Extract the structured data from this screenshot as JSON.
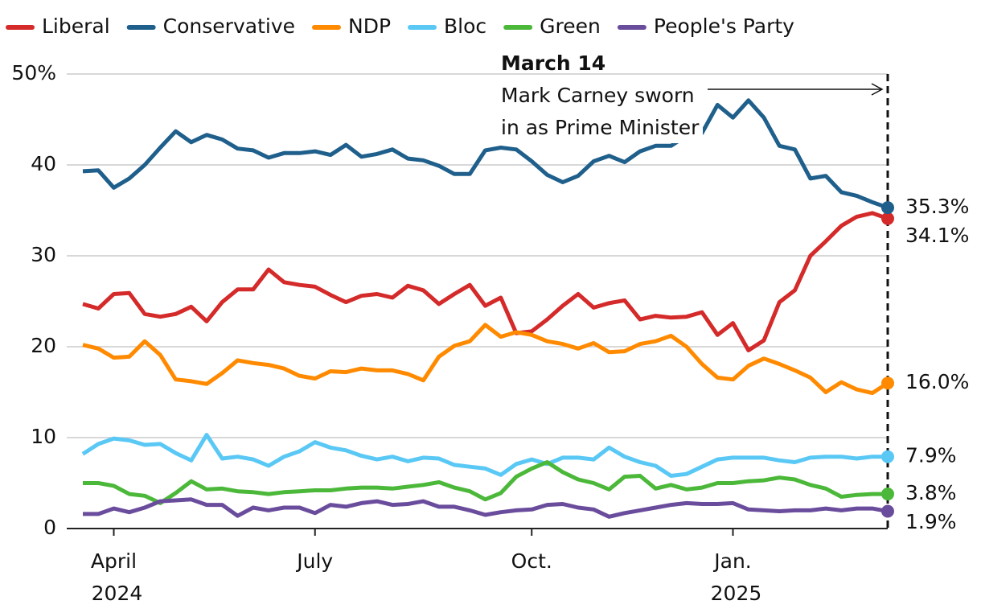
{
  "chart_data": {
    "type": "line",
    "categories": [
      null,
      null,
      "April 2024",
      null,
      null,
      null,
      null,
      null,
      null,
      null,
      null,
      null,
      null,
      null,
      null,
      "July",
      null,
      null,
      null,
      null,
      null,
      null,
      null,
      null,
      null,
      null,
      null,
      null,
      null,
      "Oct.",
      null,
      null,
      null,
      null,
      null,
      null,
      null,
      null,
      null,
      null,
      null,
      null,
      "Jan. 2025",
      null,
      null,
      null,
      null,
      null,
      null,
      null,
      null,
      null,
      null
    ],
    "ylim": [
      0,
      50
    ],
    "yticks": [
      0,
      10,
      20,
      30,
      40,
      {
        "value": 50,
        "label": "50%"
      }
    ],
    "grid": true,
    "annotation": {
      "title": "March 14",
      "text": [
        "Mark Carney sworn",
        "in as Prime Minister"
      ]
    },
    "series": [
      {
        "name": "Liberal",
        "color": "#d42a2a",
        "label_color": "#d42a2a",
        "values": [
          24.7,
          24.2,
          25.8,
          25.9,
          23.6,
          23.3,
          23.6,
          24.4,
          22.8,
          24.9,
          26.3,
          26.3,
          28.5,
          27.1,
          26.8,
          26.6,
          25.7,
          24.9,
          25.6,
          25.8,
          25.4,
          26.7,
          26.2,
          24.7,
          25.8,
          26.8,
          24.5,
          25.4,
          21.5,
          21.7,
          23.0,
          24.5,
          25.8,
          24.3,
          24.8,
          25.1,
          23.0,
          23.4,
          23.2,
          23.3,
          23.8,
          21.3,
          22.6,
          19.6,
          20.7,
          24.9,
          26.2,
          30.0,
          31.6,
          33.3,
          34.3,
          34.7,
          34.1
        ],
        "value_labels": [
          null,
          null,
          null,
          null,
          null,
          null,
          null,
          null,
          null,
          null,
          null,
          null,
          null,
          null,
          null,
          null,
          null,
          null,
          null,
          null,
          null,
          null,
          null,
          null,
          null,
          null,
          null,
          null,
          null,
          null,
          null,
          null,
          null,
          null,
          null,
          null,
          null,
          null,
          null,
          null,
          null,
          null,
          null,
          null,
          null,
          null,
          null,
          null,
          null,
          null,
          null,
          null,
          "34.1%"
        ]
      },
      {
        "name": "Conservative",
        "color": "#1f5f8b",
        "label_color": "#1f5f8b",
        "values": [
          39.3,
          39.4,
          37.5,
          38.5,
          40.0,
          41.9,
          43.7,
          42.5,
          43.3,
          42.8,
          41.8,
          41.6,
          40.8,
          41.3,
          41.3,
          41.5,
          41.1,
          42.2,
          40.9,
          41.2,
          41.7,
          40.7,
          40.5,
          39.9,
          39.0,
          39.0,
          41.6,
          41.9,
          41.7,
          40.4,
          38.9,
          38.1,
          38.8,
          40.4,
          41.0,
          40.3,
          41.5,
          42.1,
          42.1,
          43.2,
          43.5,
          46.6,
          45.2,
          47.1,
          45.2,
          42.1,
          41.7,
          38.5,
          38.8,
          37.0,
          36.6,
          35.9,
          35.3
        ],
        "value_labels": [
          null,
          null,
          null,
          null,
          null,
          null,
          null,
          null,
          null,
          null,
          null,
          null,
          null,
          null,
          null,
          null,
          null,
          null,
          null,
          null,
          null,
          null,
          null,
          null,
          null,
          null,
          null,
          null,
          null,
          null,
          null,
          null,
          null,
          null,
          null,
          null,
          null,
          null,
          null,
          null,
          null,
          null,
          null,
          null,
          null,
          null,
          null,
          null,
          null,
          null,
          null,
          null,
          "35.3%"
        ]
      },
      {
        "name": "NDP",
        "color": "#ff8a00",
        "label_color": "#d35a00",
        "values": [
          20.2,
          19.8,
          18.8,
          18.9,
          20.6,
          19.1,
          16.4,
          16.2,
          15.9,
          17.1,
          18.5,
          18.2,
          18.0,
          17.6,
          16.8,
          16.5,
          17.3,
          17.2,
          17.6,
          17.4,
          17.4,
          17.0,
          16.3,
          18.9,
          20.1,
          20.6,
          22.4,
          21.1,
          21.6,
          21.3,
          20.6,
          20.3,
          19.8,
          20.4,
          19.4,
          19.5,
          20.3,
          20.6,
          21.2,
          20.0,
          18.1,
          16.6,
          16.4,
          17.9,
          18.7,
          18.1,
          17.4,
          16.6,
          15.0,
          16.1,
          15.3,
          14.9,
          16.0
        ],
        "value_labels": [
          null,
          null,
          null,
          null,
          null,
          null,
          null,
          null,
          null,
          null,
          null,
          null,
          null,
          null,
          null,
          null,
          null,
          null,
          null,
          null,
          null,
          null,
          null,
          null,
          null,
          null,
          null,
          null,
          null,
          null,
          null,
          null,
          null,
          null,
          null,
          null,
          null,
          null,
          null,
          null,
          null,
          null,
          null,
          null,
          null,
          null,
          null,
          null,
          null,
          null,
          null,
          null,
          "16.0%"
        ]
      },
      {
        "name": "Bloc",
        "color": "#5ac8f5",
        "label_color": "#2a93b8",
        "values": [
          8.2,
          9.3,
          9.9,
          9.7,
          9.2,
          9.3,
          8.3,
          7.5,
          10.3,
          7.7,
          7.9,
          7.6,
          6.9,
          7.9,
          8.5,
          9.5,
          8.9,
          8.6,
          8.0,
          7.6,
          7.9,
          7.4,
          7.8,
          7.7,
          7.0,
          6.8,
          6.6,
          5.9,
          7.1,
          7.6,
          7.1,
          7.8,
          7.8,
          7.6,
          8.9,
          7.9,
          7.3,
          6.9,
          5.8,
          6.0,
          6.8,
          7.6,
          7.8,
          7.8,
          7.8,
          7.5,
          7.3,
          7.8,
          7.9,
          7.9,
          7.7,
          7.9,
          7.9
        ],
        "value_labels": [
          null,
          null,
          null,
          null,
          null,
          null,
          null,
          null,
          null,
          null,
          null,
          null,
          null,
          null,
          null,
          null,
          null,
          null,
          null,
          null,
          null,
          null,
          null,
          null,
          null,
          null,
          null,
          null,
          null,
          null,
          null,
          null,
          null,
          null,
          null,
          null,
          null,
          null,
          null,
          null,
          null,
          null,
          null,
          null,
          null,
          null,
          null,
          null,
          null,
          null,
          null,
          null,
          "7.9%"
        ]
      },
      {
        "name": "Green",
        "color": "#4cb83a",
        "label_color": "#2a8a1f",
        "values": [
          5.0,
          5.0,
          4.7,
          3.8,
          3.6,
          2.8,
          3.9,
          5.2,
          4.3,
          4.4,
          4.1,
          4.0,
          3.8,
          4.0,
          4.1,
          4.2,
          4.2,
          4.4,
          4.5,
          4.5,
          4.4,
          4.6,
          4.8,
          5.1,
          4.5,
          4.1,
          3.2,
          3.9,
          5.7,
          6.6,
          7.3,
          6.2,
          5.4,
          5.0,
          4.3,
          5.7,
          5.8,
          4.4,
          4.8,
          4.3,
          4.5,
          5.0,
          5.0,
          5.2,
          5.3,
          5.6,
          5.4,
          4.8,
          4.4,
          3.5,
          3.7,
          3.8,
          3.8
        ],
        "value_labels": [
          null,
          null,
          null,
          null,
          null,
          null,
          null,
          null,
          null,
          null,
          null,
          null,
          null,
          null,
          null,
          null,
          null,
          null,
          null,
          null,
          null,
          null,
          null,
          null,
          null,
          null,
          null,
          null,
          null,
          null,
          null,
          null,
          null,
          null,
          null,
          null,
          null,
          null,
          null,
          null,
          null,
          null,
          null,
          null,
          null,
          null,
          null,
          null,
          null,
          null,
          null,
          null,
          "3.8%"
        ]
      },
      {
        "name": "People's Party",
        "color": "#6a4c9c",
        "label_color": "#6a4c9c",
        "values": [
          1.6,
          1.6,
          2.2,
          1.8,
          2.3,
          3.0,
          3.1,
          3.2,
          2.6,
          2.6,
          1.4,
          2.3,
          2.0,
          2.3,
          2.3,
          1.7,
          2.6,
          2.4,
          2.8,
          3.0,
          2.6,
          2.7,
          3.0,
          2.4,
          2.4,
          2.0,
          1.5,
          1.8,
          2.0,
          2.1,
          2.6,
          2.7,
          2.3,
          2.1,
          1.3,
          1.7,
          2.0,
          2.3,
          2.6,
          2.8,
          2.7,
          2.7,
          2.8,
          2.1,
          2.0,
          1.9,
          2.0,
          2.0,
          2.2,
          2.0,
          2.2,
          2.2,
          1.9
        ],
        "value_labels": [
          null,
          null,
          null,
          null,
          null,
          null,
          null,
          null,
          null,
          null,
          null,
          null,
          null,
          null,
          null,
          null,
          null,
          null,
          null,
          null,
          null,
          null,
          null,
          null,
          null,
          null,
          null,
          null,
          null,
          null,
          null,
          null,
          null,
          null,
          null,
          null,
          null,
          null,
          null,
          null,
          null,
          null,
          null,
          null,
          null,
          null,
          null,
          null,
          null,
          null,
          null,
          null,
          "1.9%"
        ]
      }
    ]
  }
}
